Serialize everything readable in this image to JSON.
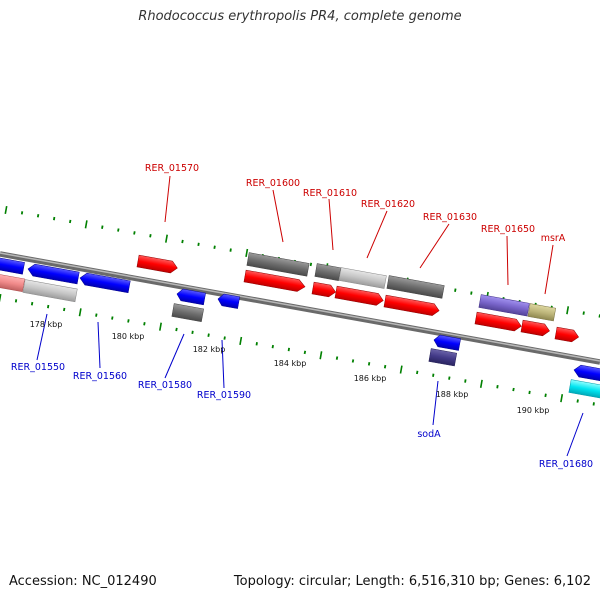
{
  "title": "Rhodococcus erythropolis PR4, complete genome",
  "footer": {
    "accession": "Accession: NC_012490",
    "summary": "Topology: circular; Length: 6,516,310 bp; Genes: 6,102"
  },
  "kbp_labels": [
    "178 kbp",
    "180 kbp",
    "182 kbp",
    "184 kbp",
    "186 kbp",
    "188 kbp",
    "190 kbp"
  ],
  "gene_labels_forward": [
    "RER_01570",
    "RER_01600",
    "RER_01610",
    "RER_01620",
    "RER_01630",
    "RER_01650",
    "msrA"
  ],
  "gene_labels_reverse": [
    "RER_01550",
    "RER_01560",
    "RER_01580",
    "RER_01590",
    "sodA",
    "RER_01680"
  ],
  "colors": {
    "forward_label": "#cc0000",
    "reverse_label": "#0000cc",
    "forward_gene": "#ff0000",
    "reverse_gene": "#0000ff",
    "tick": "#008000",
    "backbone": "#808080"
  }
}
